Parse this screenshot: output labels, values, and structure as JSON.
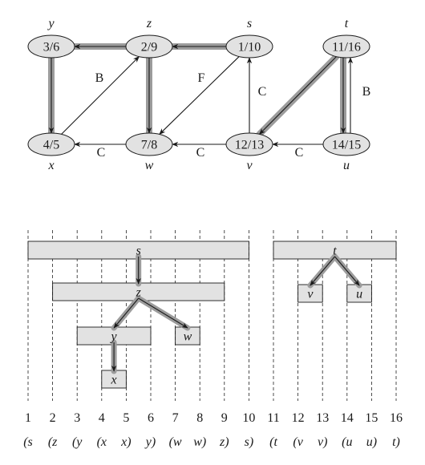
{
  "graph": {
    "nodes": [
      {
        "id": "y",
        "name": "y",
        "times": "3/6"
      },
      {
        "id": "z",
        "name": "z",
        "times": "2/9"
      },
      {
        "id": "s",
        "name": "s",
        "times": "1/10"
      },
      {
        "id": "t",
        "name": "t",
        "times": "11/16"
      },
      {
        "id": "x",
        "name": "x",
        "times": "4/5"
      },
      {
        "id": "w",
        "name": "w",
        "times": "7/8"
      },
      {
        "id": "v",
        "name": "v",
        "times": "12/13"
      },
      {
        "id": "u",
        "name": "u",
        "times": "14/15"
      }
    ],
    "edges": [
      {
        "from": "z",
        "to": "y",
        "label": "",
        "tree": true
      },
      {
        "from": "s",
        "to": "z",
        "label": "",
        "tree": true
      },
      {
        "from": "y",
        "to": "x",
        "label": "",
        "tree": true
      },
      {
        "from": "z",
        "to": "w",
        "label": "",
        "tree": true
      },
      {
        "from": "x",
        "to": "z",
        "label": "B",
        "tree": false
      },
      {
        "from": "s",
        "to": "w",
        "label": "F",
        "tree": false
      },
      {
        "from": "t",
        "to": "v",
        "label": "",
        "tree": true
      },
      {
        "from": "t",
        "to": "u",
        "label": "",
        "tree": true
      },
      {
        "from": "u",
        "to": "t",
        "label": "B",
        "tree": false
      },
      {
        "from": "v",
        "to": "s",
        "label": "C",
        "tree": false
      },
      {
        "from": "w",
        "to": "x",
        "label": "C",
        "tree": false
      },
      {
        "from": "v",
        "to": "w",
        "label": "C",
        "tree": false
      },
      {
        "from": "u",
        "to": "v",
        "label": "C",
        "tree": false
      }
    ]
  },
  "timeline": {
    "times": [
      "1",
      "2",
      "3",
      "4",
      "5",
      "6",
      "7",
      "8",
      "9",
      "10",
      "11",
      "12",
      "13",
      "14",
      "15",
      "16"
    ],
    "parens": [
      "(s",
      "(z",
      "(y",
      "(x",
      "x)",
      "y)",
      "(w",
      "w)",
      "z)",
      "s)",
      "(t",
      "(v",
      "v)",
      "(u",
      "u)",
      "t)"
    ],
    "intervals": [
      {
        "id": "s",
        "label": "s",
        "start": 1,
        "end": 10
      },
      {
        "id": "z",
        "label": "z",
        "start": 2,
        "end": 9
      },
      {
        "id": "y",
        "label": "y",
        "start": 3,
        "end": 6
      },
      {
        "id": "x",
        "label": "x",
        "start": 4,
        "end": 5
      },
      {
        "id": "w",
        "label": "w",
        "start": 7,
        "end": 8
      },
      {
        "id": "t",
        "label": "t",
        "start": 11,
        "end": 16
      },
      {
        "id": "v",
        "label": "v",
        "start": 12,
        "end": 13
      },
      {
        "id": "u",
        "label": "u",
        "start": 14,
        "end": 15
      }
    ]
  }
}
